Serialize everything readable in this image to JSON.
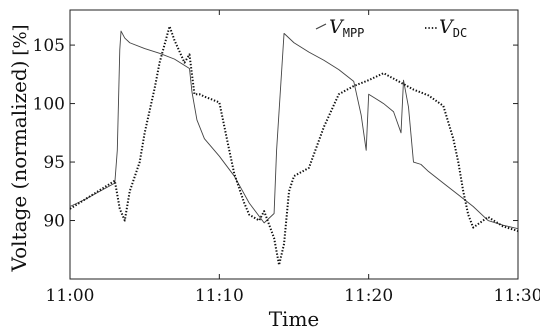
{
  "chart_data": {
    "type": "line",
    "xlabel": "Time",
    "ylabel": "Voltage (normalized)",
    "yunit": "[%]",
    "xlim": [
      "11:00",
      "11:30"
    ],
    "ylim": [
      85,
      108
    ],
    "x_ticks": [
      "11:00",
      "11:10",
      "11:20",
      "11:30"
    ],
    "y_ticks": [
      90,
      95,
      100,
      105
    ],
    "grid": false,
    "legend_position": "top-right",
    "series": [
      {
        "name_main": "V",
        "name_sub": "MPP",
        "style": "solid",
        "color": "#444444",
        "x": [
          "11:00:00",
          "11:01:00",
          "11:02:00",
          "11:03:00",
          "11:03:10",
          "11:03:20",
          "11:03:25",
          "11:03:40",
          "11:04:00",
          "11:05:00",
          "11:06:00",
          "11:07:00",
          "11:08:00",
          "11:08:10",
          "11:08:30",
          "11:09:00",
          "11:10:00",
          "11:11:00",
          "11:12:00",
          "11:13:00",
          "11:13:40",
          "11:13:50",
          "11:14:20",
          "11:15:00",
          "11:16:00",
          "11:17:00",
          "11:18:00",
          "11:19:00",
          "11:19:30",
          "11:19:50",
          "11:20:00",
          "11:20:30",
          "11:21:00",
          "11:21:40",
          "11:22:10",
          "11:22:20",
          "11:22:40",
          "11:23:00",
          "11:23:30",
          "11:24:00",
          "11:25:00",
          "11:26:00",
          "11:27:00",
          "11:28:00",
          "11:29:00",
          "11:30:00"
        ],
        "values": [
          91.2,
          91.8,
          92.5,
          93.2,
          96.0,
          104.6,
          106.2,
          105.6,
          105.2,
          104.7,
          104.3,
          103.8,
          103.0,
          101.0,
          98.6,
          97.0,
          95.5,
          93.8,
          91.5,
          89.8,
          90.6,
          96.0,
          106.0,
          105.2,
          104.4,
          103.7,
          102.9,
          101.9,
          99.0,
          96.0,
          100.8,
          100.4,
          100.0,
          99.3,
          97.5,
          102.0,
          99.7,
          95.0,
          94.8,
          94.2,
          93.2,
          92.2,
          91.2,
          90.0,
          89.6,
          89.3
        ]
      },
      {
        "name_main": "V",
        "name_sub": "DC",
        "style": "dotted",
        "color": "#111111",
        "x": [
          "11:00:00",
          "11:01:00",
          "11:02:00",
          "11:03:00",
          "11:03:20",
          "11:03:40",
          "11:04:00",
          "11:04:40",
          "11:05:00",
          "11:05:40",
          "11:06:00",
          "11:06:40",
          "11:07:00",
          "11:07:40",
          "11:08:00",
          "11:08:20",
          "11:08:40",
          "11:09:00",
          "11:10:00",
          "11:10:40",
          "11:11:00",
          "11:11:40",
          "11:12:00",
          "11:12:40",
          "11:13:00",
          "11:13:40",
          "11:14:00",
          "11:14:20",
          "11:14:40",
          "11:15:00",
          "11:16:00",
          "11:17:00",
          "11:18:00",
          "11:19:00",
          "11:20:00",
          "11:21:00",
          "11:22:00",
          "11:23:00",
          "11:24:00",
          "11:25:00",
          "11:25:40",
          "11:26:00",
          "11:26:20",
          "11:26:40",
          "11:27:00",
          "11:28:00",
          "11:29:00",
          "11:30:00"
        ],
        "values": [
          91.0,
          91.8,
          92.6,
          93.4,
          91.0,
          90.0,
          92.5,
          95.0,
          97.5,
          101.3,
          103.5,
          106.6,
          105.4,
          103.5,
          104.2,
          100.8,
          100.8,
          100.6,
          100.1,
          96.0,
          94.0,
          91.5,
          90.5,
          90.0,
          90.8,
          88.5,
          86.2,
          88.0,
          92.5,
          93.8,
          94.5,
          98.0,
          100.8,
          101.5,
          102.0,
          102.6,
          101.9,
          101.2,
          100.7,
          99.8,
          97.0,
          95.0,
          92.5,
          90.5,
          89.4,
          90.3,
          89.5,
          89.1
        ]
      }
    ]
  }
}
